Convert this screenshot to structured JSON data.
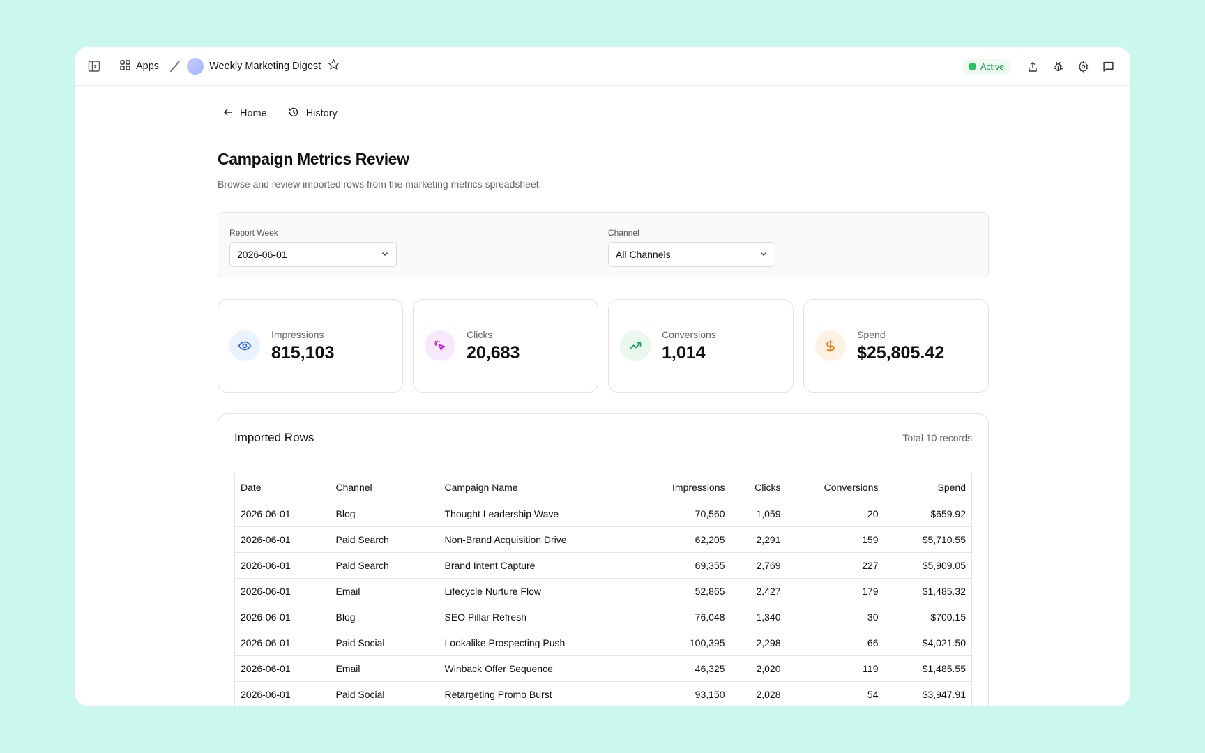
{
  "topbar": {
    "apps_label": "Apps",
    "app_title": "Weekly Marketing Digest",
    "status": "Active"
  },
  "nav": {
    "home": "Home",
    "history": "History"
  },
  "page": {
    "title": "Campaign Metrics Review",
    "subtitle": "Browse and review imported rows from the marketing metrics spreadsheet."
  },
  "filters": {
    "report_week": {
      "label": "Report Week",
      "value": "2026-06-01"
    },
    "channel": {
      "label": "Channel",
      "value": "All Channels"
    }
  },
  "metrics": [
    {
      "label": "Impressions",
      "value": "815,103",
      "icon": "eye-icon",
      "color": "#2563eb",
      "bg": "#eaf1ff"
    },
    {
      "label": "Clicks",
      "value": "20,683",
      "icon": "pointer-click-icon",
      "color": "#c026d3",
      "bg": "#f7e9fb"
    },
    {
      "label": "Conversions",
      "value": "1,014",
      "icon": "trending-up-icon",
      "color": "#16a34a",
      "bg": "#e8f8ee"
    },
    {
      "label": "Spend",
      "value": "$25,805.42",
      "icon": "dollar-icon",
      "color": "#ea7a0c",
      "bg": "#fdf1e4"
    }
  ],
  "table": {
    "title": "Imported Rows",
    "count_label": "Total 10 records",
    "columns": [
      "Date",
      "Channel",
      "Campaign Name",
      "Impressions",
      "Clicks",
      "Conversions",
      "Spend"
    ],
    "rows": [
      [
        "2026-06-01",
        "Blog",
        "Thought Leadership Wave",
        "70,560",
        "1,059",
        "20",
        "$659.92"
      ],
      [
        "2026-06-01",
        "Paid Search",
        "Non-Brand Acquisition Drive",
        "62,205",
        "2,291",
        "159",
        "$5,710.55"
      ],
      [
        "2026-06-01",
        "Paid Search",
        "Brand Intent Capture",
        "69,355",
        "2,769",
        "227",
        "$5,909.05"
      ],
      [
        "2026-06-01",
        "Email",
        "Lifecycle Nurture Flow",
        "52,865",
        "2,427",
        "179",
        "$1,485.32"
      ],
      [
        "2026-06-01",
        "Blog",
        "SEO Pillar Refresh",
        "76,048",
        "1,340",
        "30",
        "$700.15"
      ],
      [
        "2026-06-01",
        "Paid Social",
        "Lookalike Prospecting Push",
        "100,395",
        "2,298",
        "66",
        "$4,021.50"
      ],
      [
        "2026-06-01",
        "Email",
        "Winback Offer Sequence",
        "46,325",
        "2,020",
        "119",
        "$1,485.55"
      ],
      [
        "2026-06-01",
        "Paid Social",
        "Retargeting Promo Burst",
        "93,150",
        "2,028",
        "54",
        "$3,947.91"
      ]
    ]
  }
}
